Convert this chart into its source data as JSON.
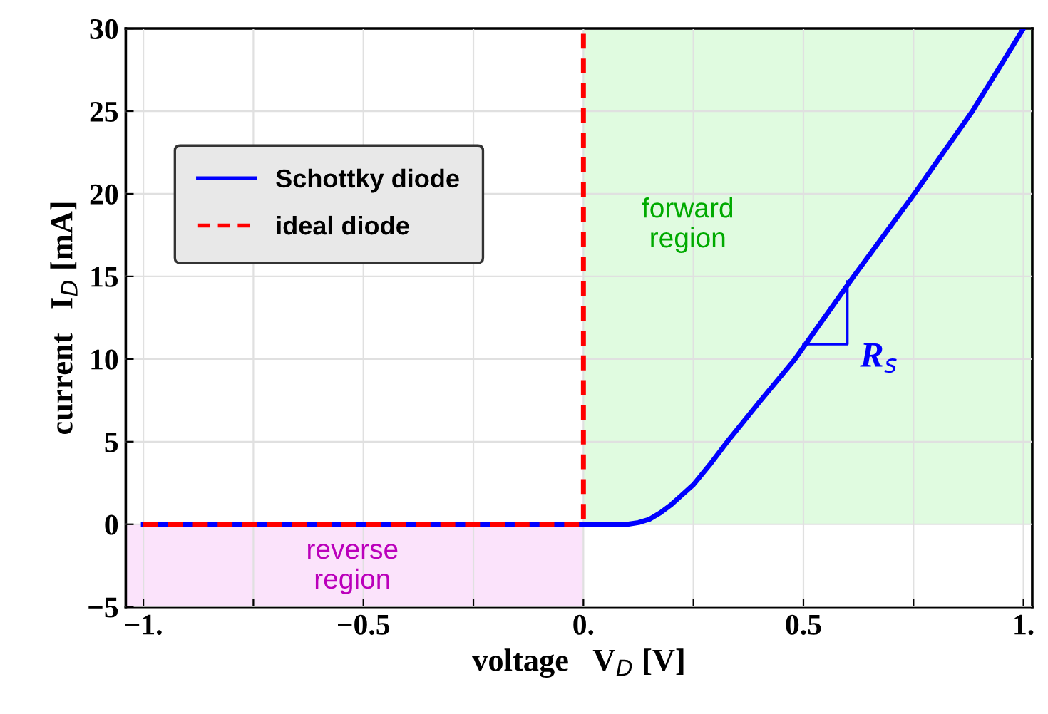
{
  "chart_data": {
    "type": "line",
    "xlabel": "voltage   V$_{D}$ [V]",
    "ylabel": "current   I$_{D}$ [mA]",
    "xlim": [
      -1.04,
      1.02
    ],
    "ylim": [
      -5,
      30
    ],
    "xticks": [
      {
        "value": -1,
        "label": "−1."
      },
      {
        "value": -0.75,
        "label": null
      },
      {
        "value": -0.5,
        "label": "−0.5"
      },
      {
        "value": -0.25,
        "label": null
      },
      {
        "value": 0,
        "label": "0."
      },
      {
        "value": 0.25,
        "label": null
      },
      {
        "value": 0.5,
        "label": "0.5"
      },
      {
        "value": 0.75,
        "label": null
      },
      {
        "value": 1,
        "label": "1."
      }
    ],
    "yticks": [
      {
        "value": -5,
        "label": "−5"
      },
      0,
      5,
      10,
      15,
      20,
      25,
      30
    ],
    "grid": true,
    "legend": "top left",
    "series": [
      {
        "type": "area",
        "color": "#e0fbe0",
        "x": [
          0,
          1.02
        ],
        "values": [
          30,
          30
        ]
      },
      {
        "type": "area",
        "color": "#fbe3fb",
        "x": [
          -1.04,
          0
        ],
        "values": [
          -5,
          -5
        ]
      },
      {
        "name": "Schottky diode",
        "color": "#0000ff",
        "line_style": "solid",
        "x": [
          -1,
          0,
          0.1,
          0.125,
          0.15,
          0.175,
          0.2,
          0.225,
          0.25,
          0.287,
          0.327,
          0.4,
          0.481,
          0.614,
          0.752,
          0.884,
          1.0
        ],
        "values": [
          0,
          0,
          0,
          0.1,
          0.3,
          0.7,
          1.2,
          1.8,
          2.4,
          3.6,
          5,
          7.4,
          10,
          15,
          20,
          25,
          30
        ]
      },
      {
        "name": "ideal diode",
        "color": "#ff0000",
        "line_style": "dashed",
        "x": [
          -1,
          0,
          0
        ],
        "values": [
          0,
          0,
          30
        ]
      },
      {
        "color": "#0000ff",
        "line_style": "solid",
        "x": [
          0.5,
          0.6,
          0.6
        ],
        "values": [
          10.9,
          10.9,
          14.7
        ]
      }
    ],
    "annotations": [
      "forward\nregion",
      "reverse\nregion",
      "R$_{s}$"
    ]
  }
}
